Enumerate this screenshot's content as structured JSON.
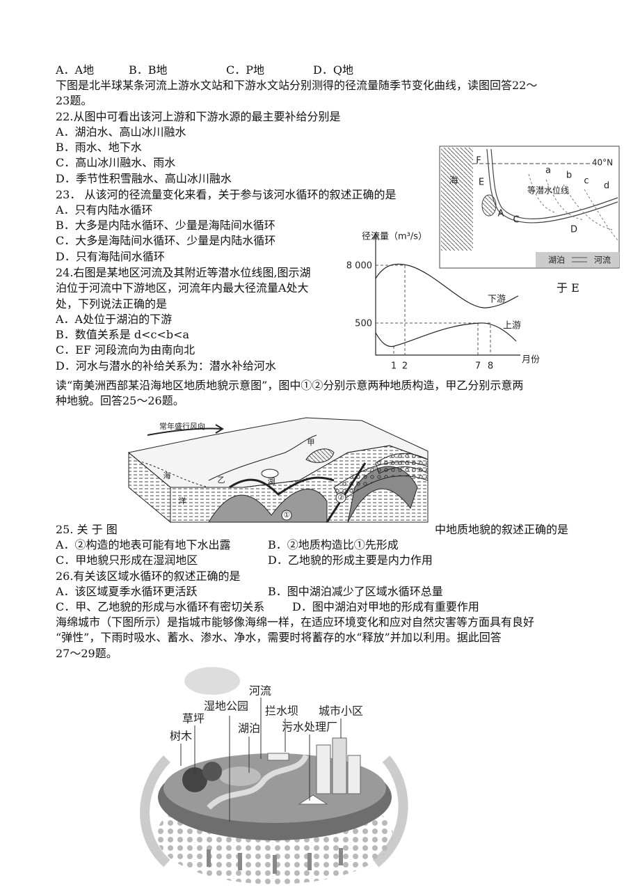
{
  "q21": {
    "options": [
      "A．A地",
      "B．B地",
      "C．P地",
      "D．Q地"
    ]
  },
  "intro_22_23": [
    "下图是北半球某条河流上游水文站和下游水文站分别测得的径流量随季节变化曲线，读图回答22～",
    "23题。"
  ],
  "q22": {
    "stem": "22.从图中可看出该河上游和下游水源的最主要补给分别是",
    "options": [
      "A．湖泊水、高山冰川融水",
      "B．雨水、地下水",
      "C．高山冰川融水、雨水",
      "D．季节性积雪融水、高山冰川融水"
    ]
  },
  "q23": {
    "stem": "23． 从该河的径流量变化来看，关于参与该河水循环的叙述正确的是",
    "options": [
      "A．只有内陆水循环",
      "B．大多是内陆水循环、少量是海陆间水循环",
      "C．大多是海陆间水循环、少量是内陆水循环",
      "D．只有海陆间水循环"
    ]
  },
  "q24": {
    "stem_lines": [
      "24.右图是某地区河流及其附近等潜水位线图,图示湖",
      "泊位于河流中下游地区，河流年内最大径流量A处大",
      "处，下列说法正确的是"
    ],
    "stem_tail": "于 E",
    "options": [
      "A．A处位于湖泊的下游",
      "B．数值关系是 d<c<b<a",
      "C．EF 河段流向为由南向北",
      "D．河水与潜水的补给关系为：潜水补给河水"
    ]
  },
  "intro_25_26": [
    "读“南美洲西部某沿海地区地质地貌示意图”，图中①②分别示意两种地质构造，甲乙分别示意两",
    "种地貌。回答25～26题。"
  ],
  "q25": {
    "stem_start": "25. 关 于 图",
    "stem_end": "中地质地貌的叙述正确的是",
    "options": [
      "A．②构造的地表可能有地下水出露",
      "B．②地质构造比①先形成",
      "C．甲地貌只形成在湿润地区",
      "D．乙地貌的形成主要是内力作用"
    ]
  },
  "q26": {
    "stem": "26.有关该区域水循环的叙述正确的是",
    "options": [
      "A．该区域夏季水循环更活跃",
      "B．图中湖泊减少了区域水循环总量",
      "C．甲、乙地貌的形成与水循环有密切关系",
      "D．图中湖泊对甲地的形成有重要作用"
    ]
  },
  "intro_27_29": [
    "海绵城市（下图所示）是指城市能够像海绵一样，在适应环境变化和应对自然灾害等方面具有良好",
    "“弹性”，下雨时吸水、蓄水、渗水、净水，需要时将蓄存的水“释放”并加以利用。据此回答",
    "27～29题。"
  ],
  "figures": {
    "runoff_graph": {
      "y_label": "径流量（m³/s）",
      "y_marks": [
        "8 000",
        "500"
      ],
      "x_marks": [
        "1",
        "2",
        "7",
        "8"
      ],
      "x_label": "月份",
      "curves": [
        "下游",
        "上游"
      ]
    },
    "contour_map": {
      "sea": "海",
      "latitude": "40°N",
      "points": [
        "F",
        "E",
        "A",
        "C",
        "D"
      ],
      "contours": [
        "a",
        "b",
        "c",
        "d"
      ],
      "contour_label": "等潜水位线",
      "legend": [
        "湖泊",
        "河流"
      ]
    },
    "geology": {
      "wind": "常年盛行风向",
      "labels": [
        "甲",
        "海",
        "洋",
        "乙",
        "湖",
        "①",
        "②"
      ]
    },
    "sponge_city": {
      "labels": [
        "河流",
        "湿地公园",
        "草坪",
        "拦水坝",
        "城市小区",
        "湖泊",
        "污水处理厂",
        "树木"
      ]
    }
  }
}
